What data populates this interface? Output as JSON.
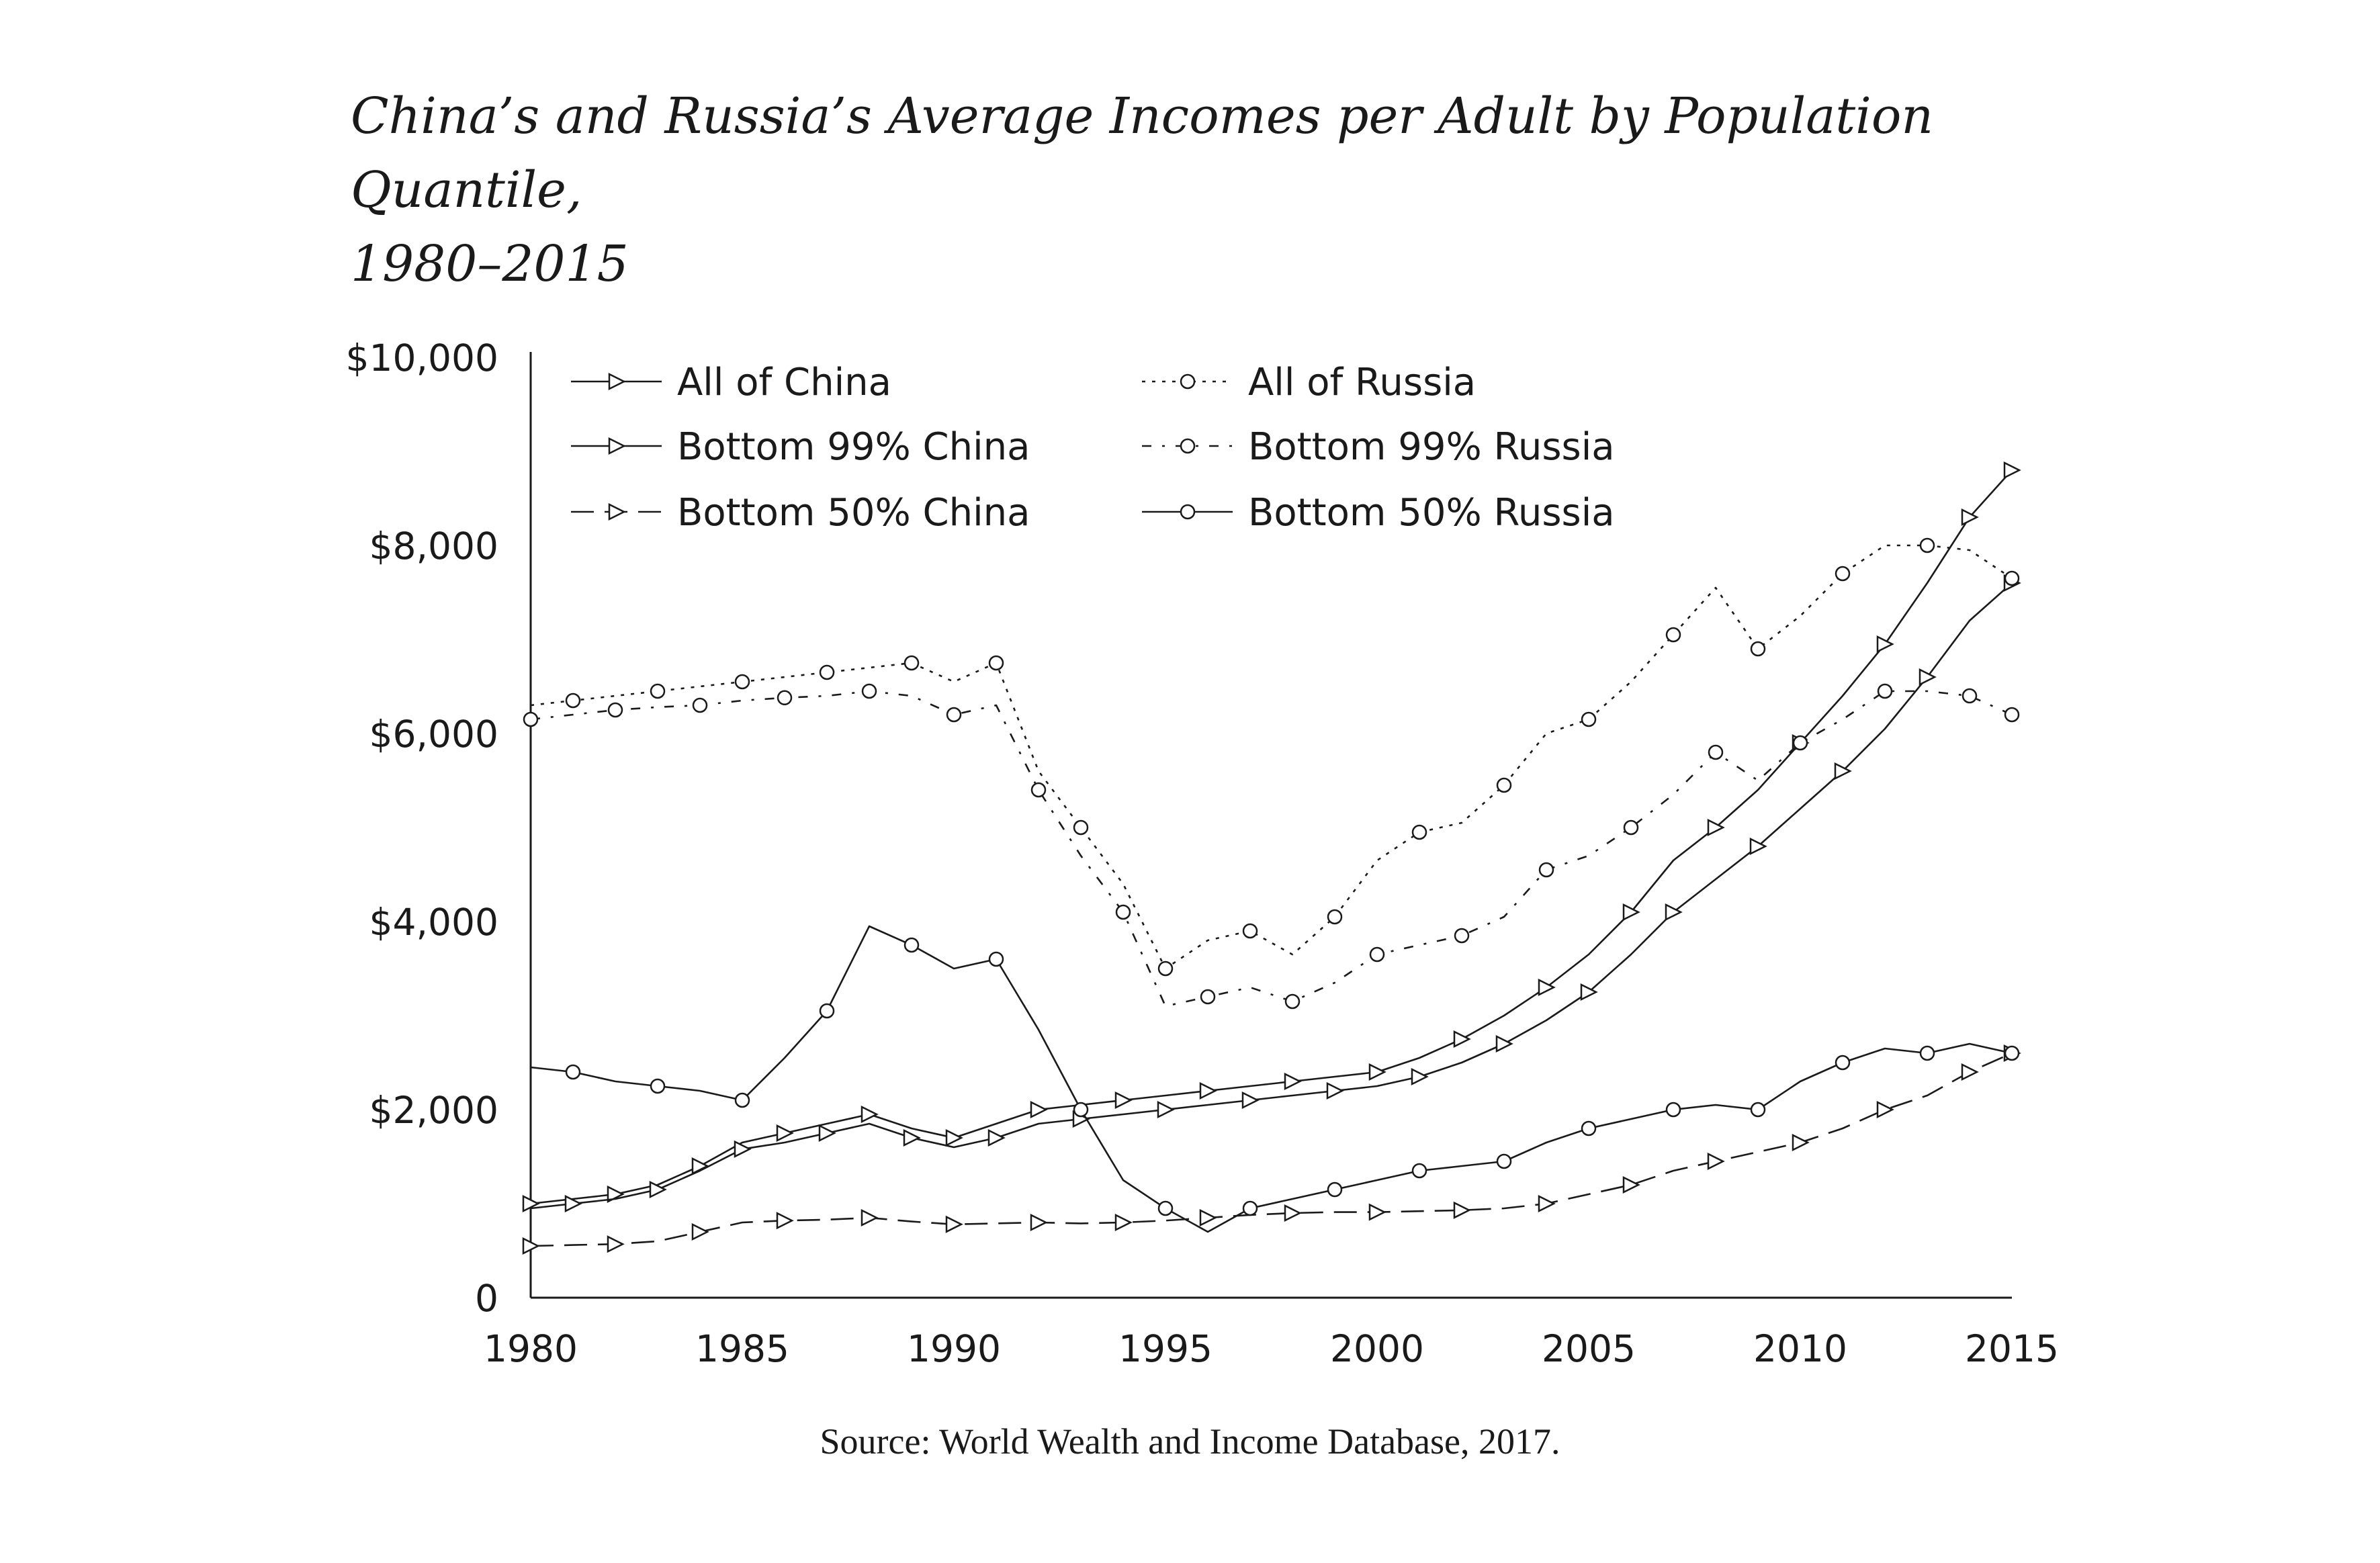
{
  "chart_data": {
    "type": "line",
    "title_line1": "China’s and Russia’s Average Incomes per Adult by Population Quantile,",
    "title_line2": "1980–2015",
    "source": "Source: World Wealth and Income Database, 2017.",
    "xlim": [
      1980,
      2015
    ],
    "ylim": [
      0,
      10000
    ],
    "x_ticks": [
      1980,
      1985,
      1990,
      1995,
      2000,
      2005,
      2010,
      2015
    ],
    "x_tick_labels": [
      "1980",
      "1985",
      "1990",
      "1995",
      "2000",
      "2005",
      "2010",
      "2015"
    ],
    "y_ticks": [
      0,
      2000,
      4000,
      6000,
      8000,
      10000
    ],
    "y_tick_labels": [
      "0",
      "$2,000",
      "$4,000",
      "$6,000",
      "$8,000",
      "$10,000"
    ],
    "grid": false,
    "legend_position": "top-left",
    "x": [
      1980,
      1981,
      1982,
      1983,
      1984,
      1985,
      1986,
      1987,
      1988,
      1989,
      1990,
      1991,
      1992,
      1993,
      1994,
      1995,
      1996,
      1997,
      1998,
      1999,
      2000,
      2001,
      2002,
      2003,
      2004,
      2005,
      2006,
      2007,
      2008,
      2009,
      2010,
      2011,
      2012,
      2013,
      2014,
      2015
    ],
    "series": [
      {
        "name": "All of China",
        "style": "solid",
        "marker": "triangle",
        "values": [
          1000,
          1050,
          1100,
          1200,
          1400,
          1650,
          1750,
          1850,
          1950,
          1800,
          1700,
          1850,
          2000,
          2050,
          2100,
          2150,
          2200,
          2250,
          2300,
          2350,
          2400,
          2550,
          2750,
          3000,
          3300,
          3650,
          4100,
          4650,
          5000,
          5400,
          5900,
          6400,
          6950,
          7600,
          8300,
          8800
        ]
      },
      {
        "name": "Bottom 99% China",
        "style": "solid",
        "marker": "triangle",
        "values": [
          950,
          1000,
          1050,
          1150,
          1350,
          1580,
          1650,
          1750,
          1850,
          1700,
          1600,
          1700,
          1850,
          1900,
          1950,
          2000,
          2050,
          2100,
          2150,
          2200,
          2250,
          2350,
          2500,
          2700,
          2950,
          3250,
          3650,
          4100,
          4450,
          4800,
          5200,
          5600,
          6050,
          6600,
          7200,
          7600
        ]
      },
      {
        "name": "Bottom 50% China",
        "style": "longdash",
        "marker": "triangle",
        "values": [
          550,
          560,
          570,
          600,
          700,
          800,
          820,
          830,
          850,
          810,
          780,
          790,
          800,
          790,
          800,
          820,
          850,
          880,
          900,
          910,
          910,
          920,
          930,
          950,
          1000,
          1100,
          1200,
          1350,
          1450,
          1550,
          1650,
          1800,
          2000,
          2150,
          2400,
          2600
        ]
      },
      {
        "name": "All of Russia",
        "style": "dotted",
        "marker": "circle",
        "values": [
          6300,
          6350,
          6400,
          6450,
          6500,
          6550,
          6600,
          6650,
          6700,
          6750,
          6550,
          6750,
          5600,
          5000,
          4400,
          3500,
          3800,
          3900,
          3650,
          4050,
          4650,
          4950,
          5050,
          5450,
          6000,
          6150,
          6550,
          7050,
          7550,
          6900,
          7250,
          7700,
          8000,
          8000,
          7950,
          7650
        ]
      },
      {
        "name": "Bottom 99% Russia",
        "style": "dashdot",
        "marker": "circle",
        "values": [
          6150,
          6200,
          6250,
          6280,
          6300,
          6350,
          6380,
          6400,
          6450,
          6400,
          6200,
          6300,
          5400,
          4700,
          4100,
          3100,
          3200,
          3300,
          3150,
          3350,
          3650,
          3750,
          3850,
          4050,
          4550,
          4700,
          5000,
          5350,
          5800,
          5500,
          5900,
          6150,
          6450,
          6450,
          6400,
          6200
        ]
      },
      {
        "name": "Bottom 50% Russia",
        "style": "solid",
        "marker": "circle",
        "values": [
          2450,
          2400,
          2300,
          2250,
          2200,
          2100,
          2550,
          3050,
          3950,
          3750,
          3500,
          3600,
          2850,
          2000,
          1250,
          950,
          700,
          950,
          1050,
          1150,
          1250,
          1350,
          1400,
          1450,
          1650,
          1800,
          1900,
          2000,
          2050,
          2000,
          2300,
          2500,
          2650,
          2600,
          2700,
          2600
        ]
      }
    ]
  }
}
